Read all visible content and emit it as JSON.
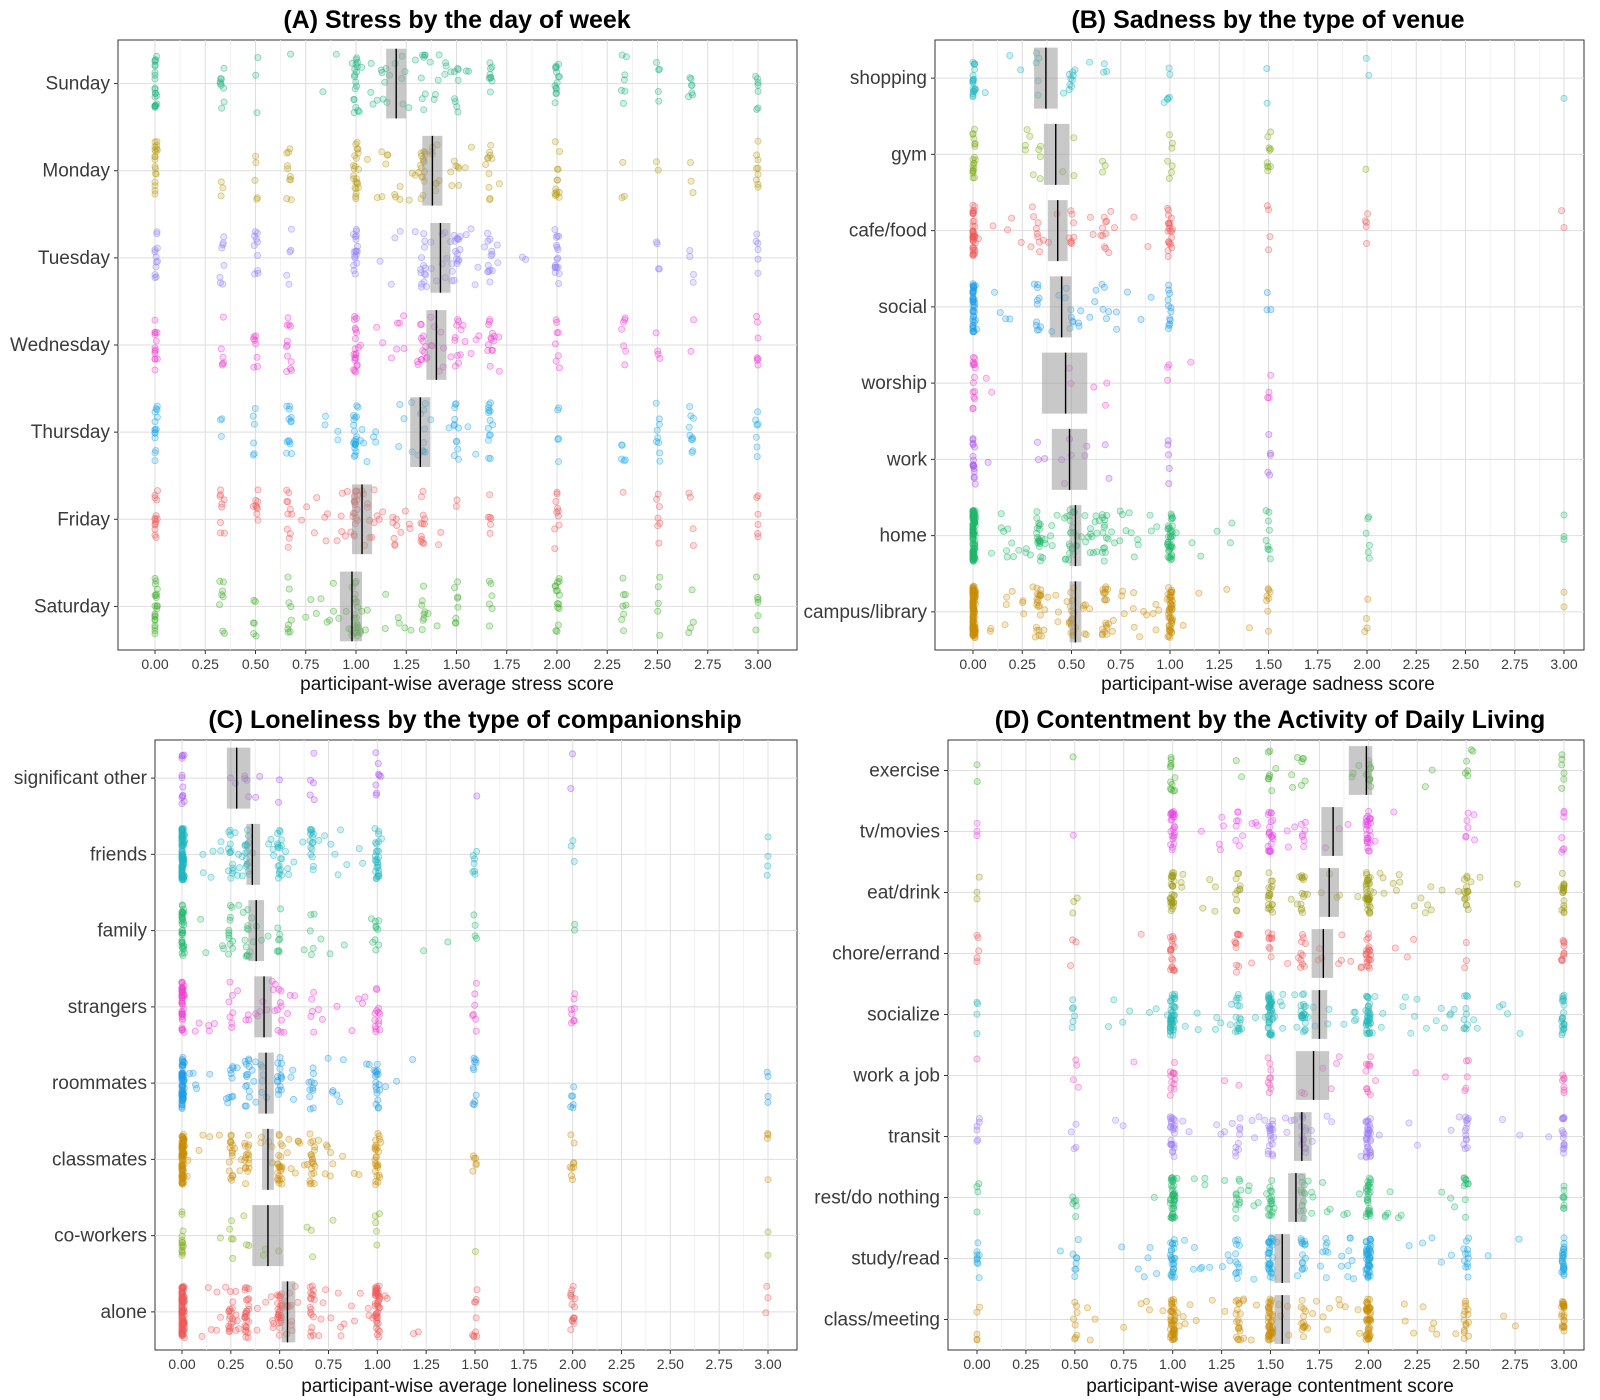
{
  "figure": {
    "x_ticks": [
      "0.00",
      "0.25",
      "0.50",
      "0.75",
      "1.00",
      "1.25",
      "1.50",
      "1.75",
      "2.00",
      "2.25",
      "2.50",
      "2.75",
      "3.00"
    ]
  },
  "chart_data": [
    {
      "type": "scatter",
      "panel": "A",
      "title": "(A) Stress by the day of week",
      "xlabel": "participant-wise average stress score",
      "xlim": [
        0,
        3
      ],
      "grid": true,
      "categories": [
        "Sunday",
        "Monday",
        "Tuesday",
        "Wednesday",
        "Thursday",
        "Friday",
        "Saturday"
      ],
      "colors": [
        "#1fb281",
        "#b89b15",
        "#8f7ff8",
        "#ee3fd0",
        "#1ea9e6",
        "#ef5a5a",
        "#3fae2a"
      ],
      "mean": [
        1.2,
        1.38,
        1.42,
        1.4,
        1.32,
        1.03,
        0.98
      ],
      "ci_low": [
        1.15,
        1.33,
        1.37,
        1.35,
        1.27,
        0.98,
        0.92
      ],
      "ci_high": [
        1.25,
        1.43,
        1.47,
        1.45,
        1.37,
        1.08,
        1.03
      ],
      "density": [
        1.0,
        1.0,
        1.0,
        1.0,
        1.0,
        1.0,
        1.0
      ],
      "spread": 0.18,
      "discrete_values": [
        0,
        0.333,
        0.5,
        0.667,
        1,
        1.333,
        1.5,
        1.667,
        2,
        2.333,
        2.5,
        2.667,
        3
      ],
      "discrete_weights": [
        24,
        9,
        9,
        9,
        26,
        11,
        11,
        11,
        18,
        7,
        7,
        7,
        10
      ]
    },
    {
      "type": "scatter",
      "panel": "B",
      "title": "(B) Sadness by the type of venue",
      "xlabel": "participant-wise average sadness score",
      "xlim": [
        0,
        3
      ],
      "grid": true,
      "categories": [
        "shopping",
        "gym",
        "cafe/food",
        "social",
        "worship",
        "work",
        "home",
        "campus/library"
      ],
      "colors": [
        "#1db5c1",
        "#7eae17",
        "#ef5a5a",
        "#1e9be6",
        "#ee3fd0",
        "#a84bf2",
        "#1fb76a",
        "#c98f0a"
      ],
      "mean": [
        0.37,
        0.42,
        0.43,
        0.45,
        0.47,
        0.49,
        0.52,
        0.52
      ],
      "ci_low": [
        0.31,
        0.36,
        0.38,
        0.39,
        0.35,
        0.4,
        0.49,
        0.49
      ],
      "ci_high": [
        0.43,
        0.49,
        0.48,
        0.5,
        0.58,
        0.58,
        0.55,
        0.55
      ],
      "density": [
        0.35,
        0.35,
        0.75,
        0.65,
        0.2,
        0.25,
        1.8,
        1.9
      ],
      "spread": 0.32,
      "discrete_values": [
        0,
        0.333,
        0.5,
        0.667,
        1,
        1.5,
        2,
        3
      ],
      "discrete_weights": [
        40,
        6,
        6,
        5,
        14,
        4,
        3,
        1
      ]
    },
    {
      "type": "scatter",
      "panel": "C",
      "title": "(C) Loneliness by the type of companionship",
      "xlabel": "participant-wise average loneliness score",
      "xlim": [
        0,
        3
      ],
      "grid": true,
      "categories": [
        "significant other",
        "friends",
        "family",
        "strangers",
        "roommates",
        "classmates",
        "co-workers",
        "alone"
      ],
      "colors": [
        "#a84bf2",
        "#1db5c1",
        "#1fb76a",
        "#ee3fd0",
        "#1e9be6",
        "#c98f0a",
        "#7eae17",
        "#ef5a5a"
      ],
      "mean": [
        0.28,
        0.36,
        0.38,
        0.42,
        0.43,
        0.44,
        0.44,
        0.54
      ],
      "ci_low": [
        0.23,
        0.33,
        0.34,
        0.37,
        0.39,
        0.41,
        0.36,
        0.51
      ],
      "ci_high": [
        0.35,
        0.4,
        0.42,
        0.46,
        0.47,
        0.47,
        0.52,
        0.58
      ],
      "density": [
        0.25,
        1.5,
        0.7,
        0.8,
        1.2,
        1.6,
        0.25,
        2.0
      ],
      "spread": 0.32,
      "discrete_values": [
        0,
        0.25,
        0.333,
        0.5,
        0.667,
        1,
        1.5,
        2,
        3
      ],
      "discrete_weights": [
        36,
        6,
        6,
        7,
        6,
        12,
        3,
        3,
        1
      ]
    },
    {
      "type": "scatter",
      "panel": "D",
      "title": "(D) Contentment by the Activity of Daily Living",
      "xlabel": "participant-wise average contentment score",
      "xlim": [
        0,
        3
      ],
      "grid": true,
      "categories": [
        "exercise",
        "tv/movies",
        "eat/drink",
        "chore/errand",
        "socialize",
        "work a job",
        "transit",
        "rest/do nothing",
        "study/read",
        "class/meeting"
      ],
      "colors": [
        "#3fae2a",
        "#e546e6",
        "#9c9a12",
        "#ef5a5a",
        "#24b8b8",
        "#f24fb6",
        "#9b7cf7",
        "#1fb76a",
        "#1ea7e0",
        "#c98f0a"
      ],
      "mean": [
        1.99,
        1.82,
        1.8,
        1.77,
        1.75,
        1.72,
        1.66,
        1.63,
        1.56,
        1.56
      ],
      "ci_low": [
        1.9,
        1.76,
        1.75,
        1.71,
        1.71,
        1.63,
        1.62,
        1.59,
        1.52,
        1.52
      ],
      "ci_high": [
        2.02,
        1.87,
        1.85,
        1.82,
        1.79,
        1.8,
        1.71,
        1.68,
        1.6,
        1.6
      ],
      "density": [
        0.4,
        0.8,
        1.2,
        0.7,
        1.7,
        0.4,
        1.1,
        1.1,
        1.5,
        1.8
      ],
      "spread": 0.55,
      "discrete_values": [
        0,
        0.5,
        1,
        1.333,
        1.5,
        1.667,
        2,
        2.5,
        3
      ],
      "discrete_weights": [
        3,
        3,
        22,
        8,
        18,
        8,
        22,
        10,
        14
      ]
    }
  ]
}
